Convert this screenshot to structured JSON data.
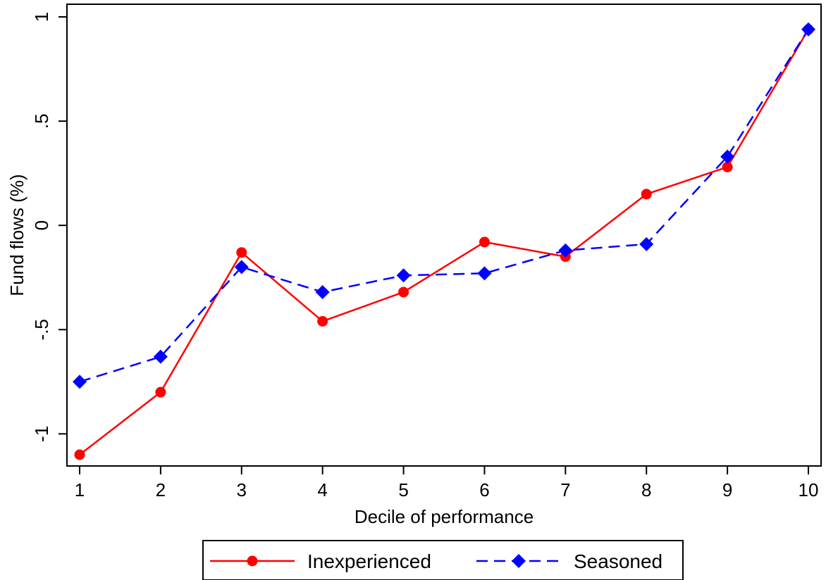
{
  "chart_data": {
    "type": "line",
    "xlabel": "Decile of performance",
    "ylabel": "Fund flows (%)",
    "x": [
      1,
      2,
      3,
      4,
      5,
      6,
      7,
      8,
      9,
      10
    ],
    "x_tick_labels": [
      "1",
      "2",
      "3",
      "4",
      "5",
      "6",
      "7",
      "8",
      "9",
      "10"
    ],
    "y_ticks": [
      -1,
      -0.5,
      0,
      0.5,
      1
    ],
    "y_tick_labels": [
      "-1",
      "-.5",
      "0",
      ".5",
      "1"
    ],
    "xlim": [
      1,
      10
    ],
    "ylim": [
      -1.1,
      1.0
    ],
    "grid": false,
    "legend_position": "bottom",
    "series": [
      {
        "name": "Inexperienced",
        "color": "#ff0000",
        "line_style": "solid",
        "marker": "circle",
        "values": [
          -1.1,
          -0.8,
          -0.13,
          -0.46,
          -0.32,
          -0.08,
          -0.15,
          0.15,
          0.28,
          0.94
        ]
      },
      {
        "name": "Seasoned",
        "color": "#0000ff",
        "line_style": "dashed",
        "marker": "diamond",
        "values": [
          -0.75,
          -0.63,
          -0.2,
          -0.32,
          -0.24,
          -0.23,
          -0.12,
          -0.09,
          0.33,
          0.94
        ]
      }
    ]
  }
}
